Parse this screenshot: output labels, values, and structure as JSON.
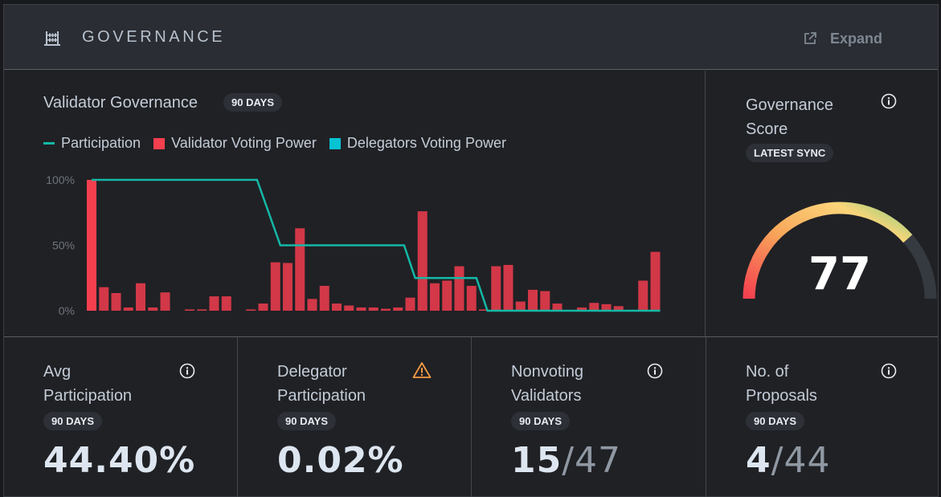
{
  "header": {
    "title": "GOVERNANCE",
    "icon": "abacus-icon",
    "expand_label": "Expand",
    "expand_icon": "external-link-icon"
  },
  "chart_data": {
    "type": "bar",
    "title": "Validator Governance",
    "badge": "90 DAYS",
    "legend": [
      {
        "label": "Participation",
        "kind": "line",
        "color": "#14b8a6"
      },
      {
        "label": "Validator Voting Power",
        "kind": "bar",
        "color": "#f43f4f"
      },
      {
        "label": "Delegators Voting Power",
        "kind": "bar",
        "color": "#06c3d4"
      }
    ],
    "yticks": [
      "100%",
      "50%",
      "0%"
    ],
    "ylim": [
      0,
      100
    ],
    "series": [
      {
        "name": "Validator Voting Power",
        "values": [
          100,
          18,
          13.5,
          2.5,
          21,
          2.5,
          14,
          0,
          1,
          1,
          11,
          11,
          0,
          1,
          5.5,
          37,
          36.5,
          63,
          9,
          19,
          5.5,
          4,
          2.5,
          2.5,
          1.5,
          2.5,
          10,
          76,
          21,
          23,
          34,
          19,
          1,
          34,
          35,
          7,
          16,
          15,
          5.5,
          0,
          2.5,
          6,
          5,
          3.5,
          0,
          23,
          45
        ]
      },
      {
        "name": "Participation",
        "points": [
          [
            0,
            100
          ],
          [
            13.5,
            100
          ],
          [
            15.4,
            50
          ],
          [
            25.5,
            50
          ],
          [
            26.4,
            25
          ],
          [
            31.4,
            25
          ],
          [
            32.3,
            0
          ],
          [
            46.4,
            0
          ]
        ]
      }
    ]
  },
  "score": {
    "title": "Governance Score",
    "badge": "LATEST SYNC",
    "value": "77",
    "max": 100,
    "track_color": "#343a3f"
  },
  "stats": [
    {
      "title": "Avg Participation",
      "badge": "90 DAYS",
      "value": "44.40%",
      "value_muted": "",
      "icon": "info-icon"
    },
    {
      "title": "Delegator Participation",
      "badge": "90 DAYS",
      "value": "0.02%",
      "value_muted": "",
      "icon": "warning-icon"
    },
    {
      "title": "Nonvoting Validators",
      "badge": "90 DAYS",
      "value": "15",
      "value_muted": "/47",
      "icon": "info-icon"
    },
    {
      "title": "No. of Proposals",
      "badge": "90 DAYS",
      "value": "4",
      "value_muted": "/44",
      "icon": "info-icon"
    }
  ]
}
